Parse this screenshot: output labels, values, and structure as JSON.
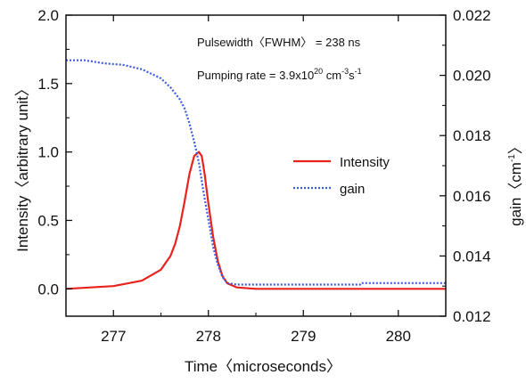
{
  "chart_data": {
    "type": "line",
    "title": "",
    "xlabel": "Time〈microseconds〉",
    "ylabel_left": "Intensity〈arbitrary unit〉",
    "ylabel_right": "gain〈cm",
    "ylabel_right_sup": "-1",
    "ylabel_right_close": "〉",
    "xlim": [
      276.5,
      280.5
    ],
    "ylim_left": [
      -0.2,
      2.0
    ],
    "ylim_right": [
      0.012,
      0.022
    ],
    "x_ticks": [
      277,
      278,
      279,
      280
    ],
    "x_tick_labels": [
      "277",
      "278",
      "279",
      "280"
    ],
    "y_left_ticks": [
      0.0,
      0.5,
      1.0,
      1.5,
      2.0
    ],
    "y_left_tick_labels": [
      "0.0",
      "0.5",
      "1.0",
      "1.5",
      "2.0"
    ],
    "y_right_ticks": [
      0.012,
      0.014,
      0.016,
      0.018,
      0.02,
      0.022
    ],
    "y_right_tick_labels": [
      "0.012",
      "0.014",
      "0.016",
      "0.018",
      "0.020",
      "0.022"
    ],
    "grid": false,
    "legend_placement": "center-right",
    "annotations": {
      "line1": "Pulsewidth〈FWHM〉 = 238 ns",
      "line2_pre": "Pumping rate = 3.9x10",
      "line2_sup1": "20",
      "line2_mid": " cm",
      "line2_sup2": "-3",
      "line2_s": "s",
      "line2_sup3": "-1"
    },
    "series": [
      {
        "name": "Intensity",
        "axis": "left",
        "color": "#e8221d",
        "style": "solid",
        "x": [
          276.5,
          277.0,
          277.3,
          277.5,
          277.6,
          277.65,
          277.7,
          277.75,
          277.8,
          277.85,
          277.9,
          277.93,
          277.96,
          278.0,
          278.05,
          278.1,
          278.15,
          278.2,
          278.3,
          278.5,
          279.0,
          280.5
        ],
        "y": [
          0.0,
          0.02,
          0.06,
          0.14,
          0.24,
          0.33,
          0.46,
          0.64,
          0.84,
          0.97,
          1.0,
          0.97,
          0.84,
          0.62,
          0.38,
          0.2,
          0.09,
          0.04,
          0.01,
          0.0,
          0.0,
          0.0
        ]
      },
      {
        "name": "gain",
        "axis": "right",
        "color": "#3a5de0",
        "style": "dotted",
        "x": [
          276.5,
          276.7,
          276.9,
          277.1,
          277.3,
          277.5,
          277.6,
          277.7,
          277.75,
          277.8,
          277.85,
          277.9,
          277.95,
          278.0,
          278.05,
          278.1,
          278.15,
          278.2,
          278.3,
          279.0,
          279.6,
          279.61,
          280.5
        ],
        "y": [
          0.0205,
          0.0205,
          0.0204,
          0.02035,
          0.0202,
          0.0199,
          0.0196,
          0.0192,
          0.0189,
          0.0184,
          0.0178,
          0.0171,
          0.0161,
          0.0152,
          0.0143,
          0.0137,
          0.0133,
          0.0131,
          0.01305,
          0.01305,
          0.01305,
          0.0131,
          0.0131
        ]
      }
    ]
  }
}
